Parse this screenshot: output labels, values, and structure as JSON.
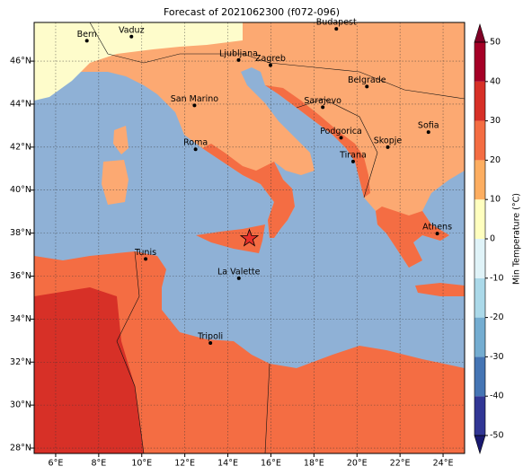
{
  "title": "Forecast of 2021062300 (f072-096)",
  "map": {
    "lonlim": [
      5,
      25
    ],
    "latlim": [
      27.75,
      47.8
    ],
    "lon_ticks": [
      {
        "value": 6,
        "label": "6°E"
      },
      {
        "value": 8,
        "label": "8°E"
      },
      {
        "value": 10,
        "label": "10°E"
      },
      {
        "value": 12,
        "label": "12°E"
      },
      {
        "value": 14,
        "label": "14°E"
      },
      {
        "value": 16,
        "label": "16°E"
      },
      {
        "value": 18,
        "label": "18°E"
      },
      {
        "value": 20,
        "label": "20°E"
      },
      {
        "value": 22,
        "label": "22°E"
      },
      {
        "value": 24,
        "label": "24°E"
      }
    ],
    "lat_ticks": [
      {
        "value": 28,
        "label": "28°N"
      },
      {
        "value": 30,
        "label": "30°N"
      },
      {
        "value": 32,
        "label": "32°N"
      },
      {
        "value": 34,
        "label": "34°N"
      },
      {
        "value": 36,
        "label": "36°N"
      },
      {
        "value": 38,
        "label": "38°N"
      },
      {
        "value": 40,
        "label": "40°N"
      },
      {
        "value": 42,
        "label": "42°N"
      },
      {
        "value": 44,
        "label": "44°N"
      },
      {
        "value": 46,
        "label": "46°N"
      }
    ],
    "cities": [
      {
        "label": "Bern",
        "lon": 7.45,
        "lat": 46.95
      },
      {
        "label": "Vaduz",
        "lon": 9.52,
        "lat": 47.14
      },
      {
        "label": "Budapest",
        "lon": 19.04,
        "lat": 47.5
      },
      {
        "label": "Ljubljana",
        "lon": 14.5,
        "lat": 46.05
      },
      {
        "label": "Zagreb",
        "lon": 15.98,
        "lat": 45.81
      },
      {
        "label": "Belgrade",
        "lon": 20.46,
        "lat": 44.82
      },
      {
        "label": "Sarajevo",
        "lon": 18.41,
        "lat": 43.86
      },
      {
        "label": "San Marino",
        "lon": 12.45,
        "lat": 43.94
      },
      {
        "label": "Sofia",
        "lon": 23.32,
        "lat": 42.7
      },
      {
        "label": "Podgorica",
        "lon": 19.26,
        "lat": 42.44
      },
      {
        "label": "Skopje",
        "lon": 21.43,
        "lat": 42.0
      },
      {
        "label": "Roma",
        "lon": 12.5,
        "lat": 41.9
      },
      {
        "label": "Tirana",
        "lon": 19.82,
        "lat": 41.33
      },
      {
        "label": "Athens",
        "lon": 23.73,
        "lat": 37.98
      },
      {
        "label": "Tunis",
        "lon": 10.18,
        "lat": 36.8
      },
      {
        "label": "La Valette",
        "lon": 14.51,
        "lat": 35.9
      },
      {
        "label": "Tripoli",
        "lon": 13.19,
        "lat": 32.89
      }
    ],
    "marker": {
      "lon": 15.0,
      "lat": 37.75,
      "color": "#e8302a"
    }
  },
  "colorbar": {
    "label": "Min Temperature (°C)",
    "ticks": [
      -50,
      -40,
      -30,
      -20,
      -10,
      0,
      10,
      20,
      30,
      40,
      50
    ],
    "colors": [
      "#313695",
      "#4575b4",
      "#74add1",
      "#abd9e9",
      "#e0f3f8",
      "#ffffbf",
      "#fdae61",
      "#f46d43",
      "#d73027",
      "#a50026"
    ],
    "under_color": "#191970",
    "over_color": "#800026"
  }
}
